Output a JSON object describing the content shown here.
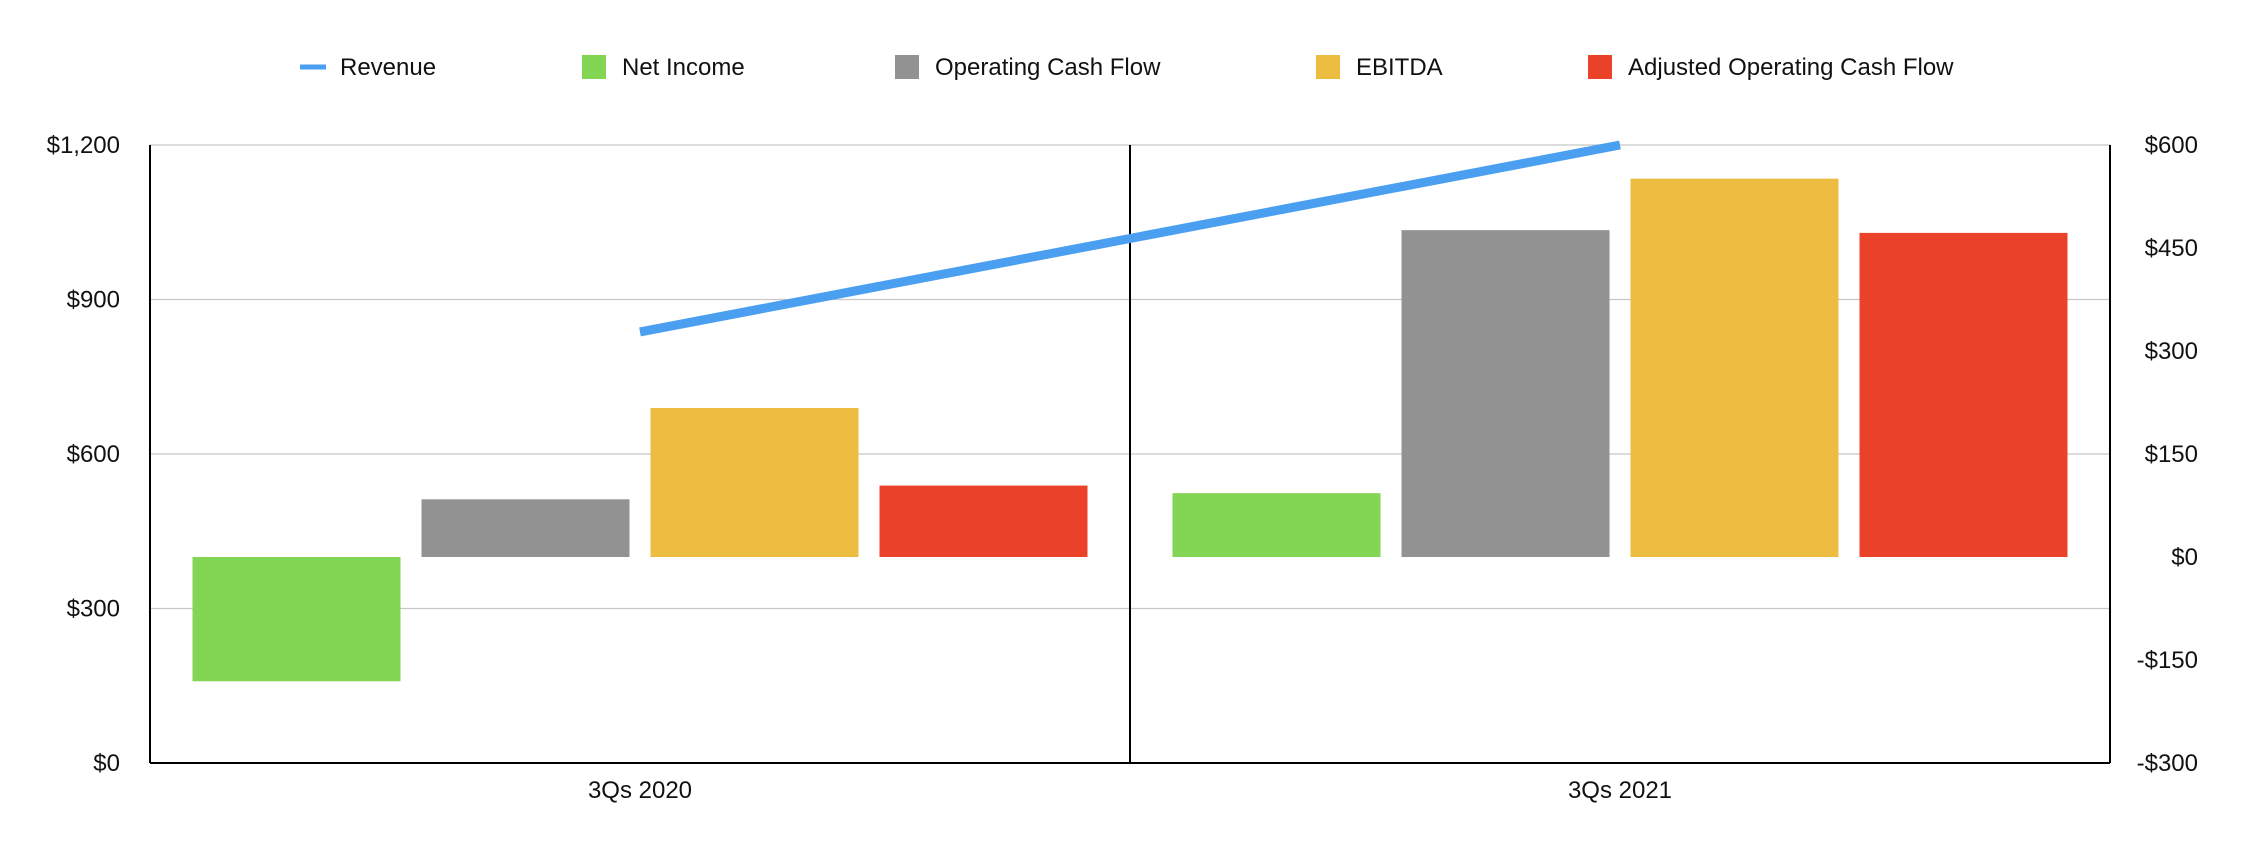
{
  "chart_data": {
    "type": "bar",
    "categories": [
      "3Qs 2020",
      "3Qs 2021"
    ],
    "left_axis": {
      "ylim": [
        0,
        1200
      ],
      "ticks": [
        0,
        300,
        600,
        900,
        1200
      ],
      "tick_labels": [
        "$0",
        "$300",
        "$600",
        "$900",
        "$1,200"
      ]
    },
    "right_axis": {
      "ylim": [
        -300,
        600
      ],
      "ticks": [
        -300,
        -150,
        0,
        150,
        300,
        450,
        600
      ],
      "tick_labels": [
        "-$300",
        "-$150",
        "$0",
        "$150",
        "$300",
        "$450",
        "$600"
      ]
    },
    "line_series": {
      "name": "Revenue",
      "axis": "left",
      "values": [
        837,
        1200
      ],
      "color": "#4A9FF0"
    },
    "bar_series": [
      {
        "name": "Net Income",
        "axis": "right",
        "values": [
          -181,
          93
        ],
        "color": "#82D654"
      },
      {
        "name": "Operating Cash Flow",
        "axis": "right",
        "values": [
          84,
          476
        ],
        "color": "#929292"
      },
      {
        "name": "EBITDA",
        "axis": "right",
        "values": [
          217,
          551
        ],
        "color": "#EDBD42"
      },
      {
        "name": "Adjusted Operating Cash Flow",
        "axis": "right",
        "values": [
          104,
          472
        ],
        "color": "#EA4228"
      }
    ],
    "grid": true,
    "legend_position": "top"
  }
}
